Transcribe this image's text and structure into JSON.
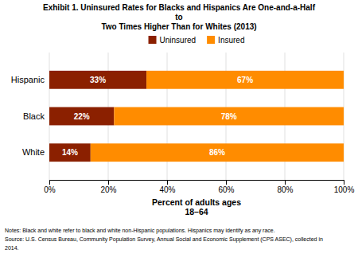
{
  "chart_data": {
    "type": "bar",
    "orientation": "horizontal",
    "stacked": true,
    "title": [
      "Exhibit 1. Uninsured Rates for Blacks and Hispanics Are One-and-a-Half",
      "to",
      "Two Times Higher Than for Whites (2013)"
    ],
    "categories": [
      "White",
      "Black",
      "Hispanic"
    ],
    "series": [
      {
        "name": "Uninsured",
        "color": "#8B2000",
        "values": [
          14,
          22,
          33
        ],
        "value_labels": [
          "14%",
          "22%",
          "33%"
        ]
      },
      {
        "name": "Insured",
        "color": "#FF8C00",
        "values": [
          86,
          78,
          67
        ],
        "value_labels": [
          "86%",
          "78%",
          "67%"
        ]
      }
    ],
    "data_labels": true,
    "xlabel": [
      "Percent of adults ages",
      "18–64"
    ],
    "xlim": [
      0,
      100
    ],
    "xticks": [
      {
        "value": 0,
        "label": "0%"
      },
      {
        "value": 20,
        "label": "20%"
      },
      {
        "value": 40,
        "label": "40%"
      },
      {
        "value": 60,
        "label": "60%"
      },
      {
        "value": 80,
        "label": "80%"
      },
      {
        "value": 100,
        "label": "100%"
      }
    ],
    "grid": true,
    "legend": "top",
    "annotations": [
      "Notes: Black and white refer to black and white non-Hispanic populations. Hispanics may identify as any race.",
      "Source: U.S. Census Bureau, Community Population Survey, Annual Social and Economic Supplement (CPS ASEC), collected in",
      "2014."
    ]
  }
}
